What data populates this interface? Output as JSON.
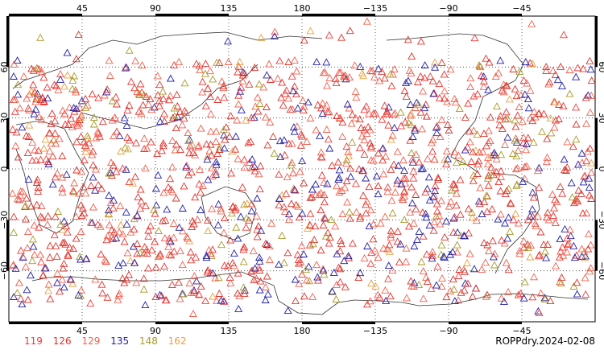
{
  "map": {
    "top_lon_labels": [
      "45",
      "90",
      "135",
      "180",
      "−135",
      "−90",
      "−45"
    ],
    "bottom_lon_labels": [
      "45",
      "90",
      "135",
      "180",
      "−135",
      "−90",
      "−45"
    ],
    "left_lat_labels": [
      "60",
      "30",
      "0",
      "−30",
      "−60"
    ],
    "right_lat_labels": [
      "60",
      "30",
      "0",
      "−30",
      "−60"
    ],
    "lon_lines": [
      45,
      90,
      135,
      180,
      -135,
      -90,
      -45
    ],
    "lat_lines": [
      60,
      30,
      0,
      -30,
      -60
    ],
    "marker_shape": "triangle",
    "grid": "dotted",
    "projection": "cylindrical equidistant, centered 180"
  },
  "legend": [
    {
      "label": "119",
      "color": "#ef3b3b"
    },
    {
      "label": "126",
      "color": "#e0322b"
    },
    {
      "label": "129",
      "color": "#f0604f"
    },
    {
      "label": "135",
      "color": "#1f1fa8"
    },
    {
      "label": "148",
      "color": "#a89a2a"
    },
    {
      "label": "162",
      "color": "#e9a040"
    }
  ],
  "caption": "ROPPdry.2024-02-08"
}
